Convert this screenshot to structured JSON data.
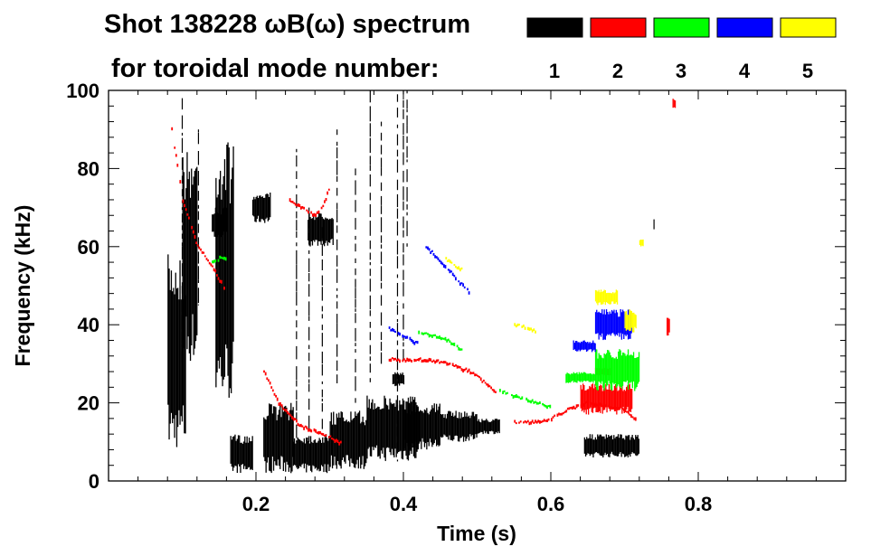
{
  "chart_data": {
    "type": "scatter",
    "title": "Shot 138228 ωB(ω) spectrum",
    "subtitle": "for toroidal mode number:",
    "xlabel": "Time (s)",
    "ylabel": "Frequency (kHz)",
    "xlim": [
      0.0,
      1.0
    ],
    "ylim": [
      0,
      100
    ],
    "xticks": [
      {
        "value": 0.2,
        "label": "0.2"
      },
      {
        "value": 0.4,
        "label": "0.4"
      },
      {
        "value": 0.6,
        "label": "0.6"
      },
      {
        "value": 0.8,
        "label": "0.8"
      }
    ],
    "yticks": [
      {
        "value": 0,
        "label": "0"
      },
      {
        "value": 20,
        "label": "20"
      },
      {
        "value": 40,
        "label": "40"
      },
      {
        "value": 60,
        "label": "60"
      },
      {
        "value": 80,
        "label": "80"
      },
      {
        "value": 100,
        "label": "100"
      }
    ],
    "legend": {
      "placement": "top-right",
      "entries": [
        {
          "label": "1",
          "color": "#000000"
        },
        {
          "label": "2",
          "color": "#ff0000"
        },
        {
          "label": "3",
          "color": "#00ff00"
        },
        {
          "label": "4",
          "color": "#0000ff"
        },
        {
          "label": "5",
          "color": "#ffff00"
        }
      ]
    },
    "series": [
      {
        "name": "1",
        "color": "#000000",
        "blobs": [
          {
            "t0": 0.08,
            "t1": 0.105,
            "f0": 8,
            "f1": 58
          },
          {
            "t0": 0.1,
            "t1": 0.12,
            "f0": 30,
            "f1": 85
          },
          {
            "t0": 0.145,
            "t1": 0.17,
            "f0": 20,
            "f1": 88
          },
          {
            "t0": 0.14,
            "t1": 0.16,
            "f0": 62,
            "f1": 70
          },
          {
            "t0": 0.165,
            "t1": 0.195,
            "f0": 2,
            "f1": 12
          },
          {
            "t0": 0.195,
            "t1": 0.22,
            "f0": 66,
            "f1": 74
          },
          {
            "t0": 0.21,
            "t1": 0.25,
            "f0": 2,
            "f1": 20
          },
          {
            "t0": 0.25,
            "t1": 0.3,
            "f0": 2,
            "f1": 12
          },
          {
            "t0": 0.27,
            "t1": 0.305,
            "f0": 60,
            "f1": 69
          },
          {
            "t0": 0.3,
            "t1": 0.35,
            "f0": 3,
            "f1": 18
          },
          {
            "t0": 0.35,
            "t1": 0.42,
            "f0": 5,
            "f1": 22
          },
          {
            "t0": 0.4,
            "t1": 0.45,
            "f0": 8,
            "f1": 20
          },
          {
            "t0": 0.45,
            "t1": 0.5,
            "f0": 10,
            "f1": 18
          },
          {
            "t0": 0.5,
            "t1": 0.53,
            "f0": 12,
            "f1": 16
          },
          {
            "t0": 0.385,
            "t1": 0.4,
            "f0": 24,
            "f1": 28
          },
          {
            "t0": 0.645,
            "t1": 0.72,
            "f0": 6,
            "f1": 12
          }
        ],
        "lines": [
          {
            "t": 0.1,
            "f0": 30,
            "f1": 98
          },
          {
            "t": 0.122,
            "f0": 45,
            "f1": 90
          },
          {
            "t": 0.255,
            "f0": 10,
            "f1": 85
          },
          {
            "t": 0.272,
            "f0": 10,
            "f1": 70
          },
          {
            "t": 0.29,
            "f0": 12,
            "f1": 65
          },
          {
            "t": 0.31,
            "f0": 25,
            "f1": 90
          },
          {
            "t": 0.335,
            "f0": 20,
            "f1": 80
          },
          {
            "t": 0.355,
            "f0": 25,
            "f1": 100
          },
          {
            "t": 0.37,
            "f0": 30,
            "f1": 92
          },
          {
            "t": 0.392,
            "f0": 5,
            "f1": 99
          },
          {
            "t": 0.4,
            "f0": 30,
            "f1": 100
          },
          {
            "t": 0.405,
            "f0": 60,
            "f1": 100
          },
          {
            "t": 0.74,
            "f0": 64,
            "f1": 67
          }
        ]
      },
      {
        "name": "2",
        "color": "#ff0000",
        "tracks": [
          {
            "t": [
              0.085,
              0.1,
              0.12,
              0.14,
              0.16
            ],
            "f": [
              90,
              72,
              60,
              55,
              48
            ]
          },
          {
            "t": [
              0.21,
              0.23,
              0.26,
              0.29,
              0.32
            ],
            "f": [
              28,
              20,
              14,
              12,
              9
            ]
          },
          {
            "t": [
              0.245,
              0.26,
              0.28,
              0.29,
              0.3
            ],
            "f": [
              72,
              70,
              68,
              70,
              76
            ]
          },
          {
            "t": [
              0.38,
              0.4,
              0.43,
              0.46,
              0.49,
              0.53
            ],
            "f": [
              31,
              31,
              31,
              30,
              28,
              22
            ]
          },
          {
            "t": [
              0.55,
              0.58,
              0.6,
              0.62,
              0.65,
              0.7,
              0.72
            ],
            "f": [
              15,
              15,
              16,
              18,
              20,
              18,
              15
            ]
          }
        ],
        "blobs": [
          {
            "t0": 0.64,
            "t1": 0.71,
            "f0": 17,
            "f1": 25
          },
          {
            "t0": 0.66,
            "t1": 0.68,
            "f0": 27,
            "f1": 29
          },
          {
            "t0": 0.765,
            "t1": 0.768,
            "f0": 95,
            "f1": 98
          },
          {
            "t0": 0.757,
            "t1": 0.761,
            "f0": 37,
            "f1": 42
          }
        ]
      },
      {
        "name": "3",
        "color": "#00ff00",
        "tracks": [
          {
            "t": [
              0.14,
              0.15,
              0.16
            ],
            "f": [
              56,
              57,
              57
            ]
          },
          {
            "t": [
              0.42,
              0.44,
              0.46,
              0.48
            ],
            "f": [
              38,
              37,
              36,
              33
            ]
          },
          {
            "t": [
              0.53,
              0.56,
              0.58,
              0.6
            ],
            "f": [
              23,
              21,
              20,
              19
            ]
          }
        ],
        "blobs": [
          {
            "t0": 0.62,
            "t1": 0.66,
            "f0": 25,
            "f1": 28
          },
          {
            "t0": 0.66,
            "t1": 0.72,
            "f0": 23,
            "f1": 34
          }
        ]
      },
      {
        "name": "4",
        "color": "#0000ff",
        "tracks": [
          {
            "t": [
              0.43,
              0.45,
              0.47,
              0.49
            ],
            "f": [
              60,
              56,
              52,
              48
            ]
          },
          {
            "t": [
              0.38,
              0.4,
              0.42
            ],
            "f": [
              39,
              37,
              35
            ]
          }
        ],
        "blobs": [
          {
            "t0": 0.63,
            "t1": 0.66,
            "f0": 33,
            "f1": 36
          },
          {
            "t0": 0.66,
            "t1": 0.71,
            "f0": 36,
            "f1": 44
          }
        ]
      },
      {
        "name": "5",
        "color": "#ffff00",
        "tracks": [
          {
            "t": [
              0.455,
              0.47,
              0.48
            ],
            "f": [
              57,
              55,
              54
            ]
          },
          {
            "t": [
              0.55,
              0.57,
              0.58
            ],
            "f": [
              40,
              39,
              38
            ]
          }
        ],
        "blobs": [
          {
            "t0": 0.66,
            "t1": 0.69,
            "f0": 45,
            "f1": 49
          },
          {
            "t0": 0.7,
            "t1": 0.715,
            "f0": 38,
            "f1": 44
          },
          {
            "t0": 0.72,
            "t1": 0.725,
            "f0": 60,
            "f1": 62
          }
        ]
      }
    ]
  }
}
